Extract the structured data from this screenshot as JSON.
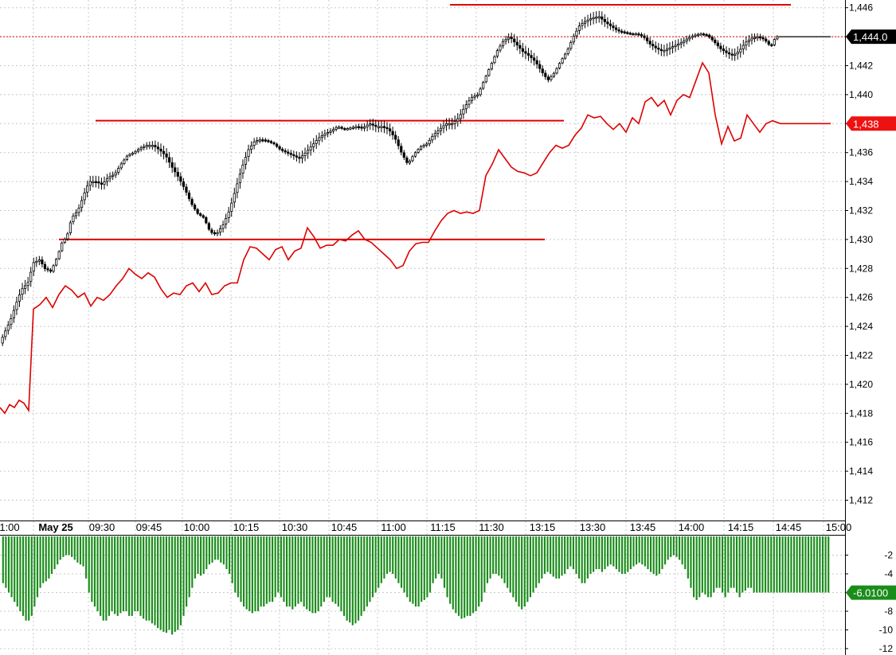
{
  "colors": {
    "background": "#ffffff",
    "grid": "#c8c8c8",
    "axis": "#000000",
    "candle_up_fill": "#ffffff",
    "candle_down_fill": "#000000",
    "candle_outline": "#000000",
    "price_line": "#000000",
    "overlay_line": "#dd0000",
    "level_line": "#dd0000",
    "histogram": "#1a8c1a",
    "current_tag_bg": "#000000",
    "overlay_tag_bg": "#ee1111",
    "hist_tag_bg": "#1a8c1a",
    "tag_text": "#ffffff"
  },
  "chart_data": [
    {
      "type": "candlestick",
      "panel": "price",
      "y_tick_labels": [
        "1,412",
        "1,414",
        "1,416",
        "1,418",
        "1,420",
        "1,422",
        "1,424",
        "1,426",
        "1,428",
        "1,430",
        "1,432",
        "1,434",
        "1,436",
        "1,438",
        "1,440",
        "1,442",
        "1,444",
        "1,446"
      ],
      "ylim": [
        1411,
        1446.5
      ],
      "x_tick_labels": [
        "1:00",
        "May 25",
        "09:30",
        "09:45",
        "10:00",
        "10:15",
        "10:30",
        "10:45",
        "11:00",
        "11:15",
        "11:30",
        "13:15",
        "13:30",
        "13:45",
        "14:00",
        "14:15",
        "14:45",
        "15:00"
      ],
      "grid": true,
      "price_path": [
        [
          0,
          1422.6
        ],
        [
          8,
          1423.6
        ],
        [
          15,
          1424.4
        ],
        [
          20,
          1425.2
        ],
        [
          25,
          1426.0
        ],
        [
          30,
          1426.6
        ],
        [
          37,
          1427.0
        ],
        [
          44,
          1428.4
        ],
        [
          52,
          1428.6
        ],
        [
          58,
          1428.0
        ],
        [
          66,
          1427.8
        ],
        [
          74,
          1428.8
        ],
        [
          80,
          1429.8
        ],
        [
          86,
          1430.2
        ],
        [
          92,
          1431.5
        ],
        [
          100,
          1432.0
        ],
        [
          108,
          1433.2
        ],
        [
          114,
          1434.0
        ],
        [
          122,
          1434.0
        ],
        [
          130,
          1433.8
        ],
        [
          138,
          1434.3
        ],
        [
          146,
          1434.5
        ],
        [
          154,
          1435.2
        ],
        [
          162,
          1435.8
        ],
        [
          170,
          1436.0
        ],
        [
          178,
          1436.3
        ],
        [
          186,
          1436.5
        ],
        [
          194,
          1436.5
        ],
        [
          202,
          1436.2
        ],
        [
          210,
          1435.8
        ],
        [
          218,
          1435.0
        ],
        [
          226,
          1434.3
        ],
        [
          234,
          1433.5
        ],
        [
          242,
          1432.5
        ],
        [
          250,
          1431.8
        ],
        [
          258,
          1431.5
        ],
        [
          266,
          1430.5
        ],
        [
          274,
          1430.4
        ],
        [
          282,
          1431.0
        ],
        [
          290,
          1432.0
        ],
        [
          298,
          1433.5
        ],
        [
          306,
          1435.0
        ],
        [
          314,
          1436.2
        ],
        [
          322,
          1436.8
        ],
        [
          330,
          1436.9
        ],
        [
          338,
          1436.8
        ],
        [
          346,
          1436.6
        ],
        [
          354,
          1436.2
        ],
        [
          362,
          1436.0
        ],
        [
          370,
          1435.8
        ],
        [
          378,
          1435.6
        ],
        [
          386,
          1436.0
        ],
        [
          394,
          1436.5
        ],
        [
          402,
          1437.0
        ],
        [
          410,
          1437.3
        ],
        [
          418,
          1437.5
        ],
        [
          426,
          1437.8
        ],
        [
          434,
          1437.6
        ],
        [
          442,
          1437.7
        ],
        [
          450,
          1437.8
        ],
        [
          458,
          1437.7
        ],
        [
          466,
          1438.0
        ],
        [
          474,
          1437.8
        ],
        [
          482,
          1437.8
        ],
        [
          490,
          1437.6
        ],
        [
          498,
          1437.0
        ],
        [
          506,
          1436.0
        ],
        [
          514,
          1435.2
        ],
        [
          522,
          1435.9
        ],
        [
          530,
          1436.4
        ],
        [
          538,
          1436.6
        ],
        [
          546,
          1437.2
        ],
        [
          554,
          1437.6
        ],
        [
          562,
          1438.0
        ],
        [
          570,
          1438.0
        ],
        [
          578,
          1438.4
        ],
        [
          586,
          1439.2
        ],
        [
          594,
          1439.8
        ],
        [
          602,
          1440.0
        ],
        [
          610,
          1441.0
        ],
        [
          618,
          1442.0
        ],
        [
          626,
          1443.0
        ],
        [
          634,
          1443.7
        ],
        [
          642,
          1444.0
        ],
        [
          650,
          1443.5
        ],
        [
          658,
          1443.0
        ],
        [
          666,
          1442.7
        ],
        [
          674,
          1442.3
        ],
        [
          682,
          1441.6
        ],
        [
          690,
          1441.0
        ],
        [
          698,
          1441.5
        ],
        [
          706,
          1442.3
        ],
        [
          714,
          1443.0
        ],
        [
          722,
          1444.0
        ],
        [
          730,
          1444.8
        ],
        [
          738,
          1445.1
        ],
        [
          746,
          1445.3
        ],
        [
          754,
          1445.4
        ],
        [
          762,
          1445.0
        ],
        [
          770,
          1444.7
        ],
        [
          778,
          1444.4
        ],
        [
          786,
          1444.3
        ],
        [
          794,
          1444.2
        ],
        [
          802,
          1444.2
        ],
        [
          810,
          1444.0
        ],
        [
          818,
          1443.5
        ],
        [
          826,
          1443.2
        ],
        [
          834,
          1443.0
        ],
        [
          842,
          1443.2
        ],
        [
          850,
          1443.4
        ],
        [
          858,
          1443.6
        ],
        [
          866,
          1443.9
        ],
        [
          874,
          1444.1
        ],
        [
          882,
          1444.2
        ],
        [
          890,
          1444.1
        ],
        [
          898,
          1443.7
        ],
        [
          906,
          1443.2
        ],
        [
          914,
          1442.9
        ],
        [
          922,
          1442.7
        ],
        [
          930,
          1443.0
        ],
        [
          938,
          1443.6
        ],
        [
          946,
          1443.9
        ],
        [
          954,
          1444.0
        ],
        [
          962,
          1443.8
        ],
        [
          970,
          1443.3
        ],
        [
          976,
          1444.0
        ],
        [
          980,
          1444.0
        ],
        [
          1043,
          1444.0
        ]
      ],
      "current_value_label": "1,444.0"
    },
    {
      "type": "line",
      "panel": "price",
      "points": [
        [
          0,
          1418.4
        ],
        [
          6,
          1418.0
        ],
        [
          12,
          1418.6
        ],
        [
          18,
          1418.4
        ],
        [
          24,
          1418.9
        ],
        [
          30,
          1418.7
        ],
        [
          36,
          1418.2
        ],
        [
          42,
          1425.2
        ],
        [
          50,
          1425.5
        ],
        [
          58,
          1426.0
        ],
        [
          66,
          1425.3
        ],
        [
          74,
          1426.2
        ],
        [
          82,
          1426.8
        ],
        [
          90,
          1426.5
        ],
        [
          98,
          1426.0
        ],
        [
          106,
          1426.3
        ],
        [
          114,
          1425.4
        ],
        [
          122,
          1426.0
        ],
        [
          130,
          1425.8
        ],
        [
          138,
          1426.2
        ],
        [
          146,
          1426.8
        ],
        [
          154,
          1427.3
        ],
        [
          162,
          1428.0
        ],
        [
          170,
          1427.6
        ],
        [
          178,
          1427.3
        ],
        [
          186,
          1427.7
        ],
        [
          194,
          1427.4
        ],
        [
          202,
          1426.6
        ],
        [
          210,
          1426.0
        ],
        [
          218,
          1426.3
        ],
        [
          226,
          1426.2
        ],
        [
          234,
          1426.8
        ],
        [
          242,
          1427.0
        ],
        [
          250,
          1426.4
        ],
        [
          258,
          1427.0
        ],
        [
          266,
          1426.2
        ],
        [
          274,
          1426.3
        ],
        [
          282,
          1426.8
        ],
        [
          290,
          1427.0
        ],
        [
          298,
          1427.0
        ],
        [
          306,
          1428.6
        ],
        [
          314,
          1429.5
        ],
        [
          322,
          1429.4
        ],
        [
          330,
          1429.0
        ],
        [
          338,
          1428.6
        ],
        [
          346,
          1429.3
        ],
        [
          354,
          1429.5
        ],
        [
          362,
          1428.6
        ],
        [
          370,
          1429.2
        ],
        [
          378,
          1429.4
        ],
        [
          386,
          1430.8
        ],
        [
          394,
          1430.2
        ],
        [
          402,
          1429.4
        ],
        [
          410,
          1429.6
        ],
        [
          418,
          1429.6
        ],
        [
          426,
          1430.0
        ],
        [
          434,
          1429.9
        ],
        [
          442,
          1430.3
        ],
        [
          450,
          1430.6
        ],
        [
          458,
          1430.0
        ],
        [
          466,
          1429.8
        ],
        [
          474,
          1429.4
        ],
        [
          482,
          1429.0
        ],
        [
          490,
          1428.6
        ],
        [
          498,
          1428.0
        ],
        [
          506,
          1428.2
        ],
        [
          514,
          1429.2
        ],
        [
          522,
          1429.7
        ],
        [
          530,
          1429.8
        ],
        [
          538,
          1429.8
        ],
        [
          546,
          1430.6
        ],
        [
          554,
          1431.3
        ],
        [
          562,
          1431.8
        ],
        [
          570,
          1432.0
        ],
        [
          578,
          1431.8
        ],
        [
          586,
          1431.9
        ],
        [
          594,
          1431.8
        ],
        [
          602,
          1432.0
        ],
        [
          610,
          1434.4
        ],
        [
          618,
          1435.2
        ],
        [
          626,
          1436.2
        ],
        [
          634,
          1435.6
        ],
        [
          642,
          1435.0
        ],
        [
          650,
          1434.7
        ],
        [
          658,
          1434.6
        ],
        [
          666,
          1434.4
        ],
        [
          674,
          1434.6
        ],
        [
          682,
          1435.3
        ],
        [
          690,
          1436.0
        ],
        [
          698,
          1436.5
        ],
        [
          706,
          1436.3
        ],
        [
          714,
          1436.5
        ],
        [
          722,
          1437.2
        ],
        [
          730,
          1437.7
        ],
        [
          738,
          1438.6
        ],
        [
          746,
          1438.4
        ],
        [
          754,
          1438.5
        ],
        [
          762,
          1438.0
        ],
        [
          770,
          1437.6
        ],
        [
          778,
          1438.0
        ],
        [
          786,
          1437.4
        ],
        [
          794,
          1438.4
        ],
        [
          802,
          1438.0
        ],
        [
          810,
          1439.5
        ],
        [
          818,
          1439.8
        ],
        [
          826,
          1439.2
        ],
        [
          834,
          1439.6
        ],
        [
          842,
          1438.6
        ],
        [
          850,
          1439.6
        ],
        [
          858,
          1440.0
        ],
        [
          866,
          1439.8
        ],
        [
          874,
          1441.0
        ],
        [
          882,
          1442.2
        ],
        [
          890,
          1441.5
        ],
        [
          898,
          1438.6
        ],
        [
          906,
          1436.6
        ],
        [
          914,
          1437.8
        ],
        [
          922,
          1436.8
        ],
        [
          930,
          1437.0
        ],
        [
          938,
          1438.6
        ],
        [
          946,
          1438.0
        ],
        [
          954,
          1437.4
        ],
        [
          962,
          1438.0
        ],
        [
          970,
          1438.2
        ],
        [
          980,
          1438.0
        ],
        [
          1043,
          1438.0
        ]
      ],
      "current_value_label": "1,438"
    },
    {
      "type": "line",
      "panel": "price",
      "description_role": "horizontal-levels",
      "levels": [
        {
          "y": 1446.2,
          "x_start": 565,
          "x_end": 993
        },
        {
          "y": 1438.2,
          "x_start": 120,
          "x_end": 708
        },
        {
          "y": 1430.0,
          "x_start": 74,
          "x_end": 684
        }
      ]
    },
    {
      "type": "bar",
      "panel": "indicator",
      "y_tick_labels": [
        "-2",
        "-4",
        "-6",
        "-8",
        "-10",
        "-12"
      ],
      "ylim": [
        -12.8,
        -0.2
      ],
      "bar_values": [
        -5.0,
        -5.5,
        -6.0,
        -6.5,
        -7.0,
        -7.5,
        -8.0,
        -8.5,
        -9.0,
        -9.0,
        -8.5,
        -7.5,
        -6.5,
        -5.5,
        -5.0,
        -4.8,
        -4.5,
        -4.0,
        -3.5,
        -3.0,
        -2.5,
        -2.2,
        -2.0,
        -2.0,
        -2.2,
        -2.5,
        -2.8,
        -3.0,
        -3.2,
        -4.5,
        -6.0,
        -7.0,
        -7.5,
        -8.0,
        -8.5,
        -9.0,
        -9.0,
        -8.5,
        -8.0,
        -8.3,
        -8.5,
        -8.2,
        -8.0,
        -8.0,
        -8.5,
        -8.5,
        -8.0,
        -8.0,
        -8.5,
        -8.8,
        -9.0,
        -9.0,
        -9.3,
        -9.5,
        -9.8,
        -10.0,
        -10.2,
        -10.3,
        -10.0,
        -10.5,
        -10.2,
        -10.0,
        -9.5,
        -8.5,
        -7.5,
        -6.5,
        -5.5,
        -4.5,
        -4.0,
        -4.2,
        -4.0,
        -3.5,
        -3.0,
        -2.8,
        -2.5,
        -2.5,
        -2.8,
        -3.0,
        -3.5,
        -4.0,
        -5.0,
        -6.0,
        -6.5,
        -7.0,
        -7.5,
        -7.8,
        -8.0,
        -8.2,
        -8.0,
        -8.0,
        -7.5,
        -7.5,
        -7.2,
        -7.0,
        -7.0,
        -6.5,
        -6.0,
        -6.5,
        -7.0,
        -7.5,
        -7.5,
        -7.8,
        -7.5,
        -7.2,
        -7.0,
        -7.5,
        -7.8,
        -8.0,
        -8.2,
        -8.2,
        -8.0,
        -7.5,
        -7.0,
        -6.5,
        -6.5,
        -7.0,
        -7.2,
        -7.5,
        -8.0,
        -8.5,
        -9.0,
        -9.2,
        -9.5,
        -9.3,
        -9.0,
        -8.5,
        -8.0,
        -7.5,
        -7.0,
        -6.5,
        -6.0,
        -5.5,
        -5.0,
        -4.5,
        -4.0,
        -3.8,
        -4.0,
        -4.5,
        -5.0,
        -5.5,
        -6.0,
        -6.5,
        -7.0,
        -7.2,
        -7.5,
        -7.5,
        -7.0,
        -6.8,
        -6.5,
        -6.0,
        -5.0,
        -4.5,
        -4.0,
        -4.5,
        -5.5,
        -6.5,
        -7.2,
        -7.8,
        -8.2,
        -8.5,
        -8.8,
        -8.7,
        -8.5,
        -8.5,
        -8.2,
        -8.0,
        -7.5,
        -7.0,
        -6.0,
        -5.0,
        -4.5,
        -4.0,
        -4.0,
        -4.2,
        -4.5,
        -5.0,
        -5.5,
        -6.0,
        -6.5,
        -7.0,
        -7.5,
        -7.8,
        -7.5,
        -7.0,
        -6.5,
        -6.0,
        -5.5,
        -5.0,
        -4.5,
        -4.0,
        -3.8,
        -4.0,
        -4.3,
        -4.5,
        -4.5,
        -4.2,
        -4.0,
        -3.5,
        -3.2,
        -3.5,
        -4.0,
        -4.5,
        -5.0,
        -5.0,
        -4.5,
        -4.0,
        -3.8,
        -3.5,
        -3.5,
        -3.8,
        -3.5,
        -3.2,
        -3.0,
        -3.2,
        -3.5,
        -3.8,
        -4.0,
        -4.0,
        -3.8,
        -3.5,
        -3.2,
        -3.0,
        -2.8,
        -3.0,
        -3.2,
        -3.5,
        -3.8,
        -4.0,
        -4.2,
        -4.0,
        -3.5,
        -3.0,
        -2.5,
        -2.2,
        -2.0,
        -2.2,
        -2.5,
        -3.0,
        -3.5,
        -4.5,
        -5.5,
        -6.5,
        -6.8,
        -6.5,
        -6.0,
        -6.2,
        -6.5,
        -6.5,
        -6.0,
        -5.5,
        -5.5,
        -6.0,
        -6.5,
        -6.0,
        -5.5,
        -5.5,
        -6.0,
        -6.5,
        -6.0,
        -5.8,
        -5.5,
        -5.5,
        -6.0,
        -6.0,
        -6.0,
        -6.0,
        -6.0,
        -6.0,
        -6.0,
        -6.0,
        -6.0,
        -6.0,
        -6.0,
        -6.0,
        -6.0,
        -6.0,
        -6.0,
        -6.0,
        -6.0,
        -6.0,
        -6.0,
        -6.0,
        -6.0,
        -6.0,
        -6.0,
        -6.0,
        -6.0,
        -6.0,
        -6.0
      ],
      "current_value_label": "-6.0100"
    }
  ]
}
